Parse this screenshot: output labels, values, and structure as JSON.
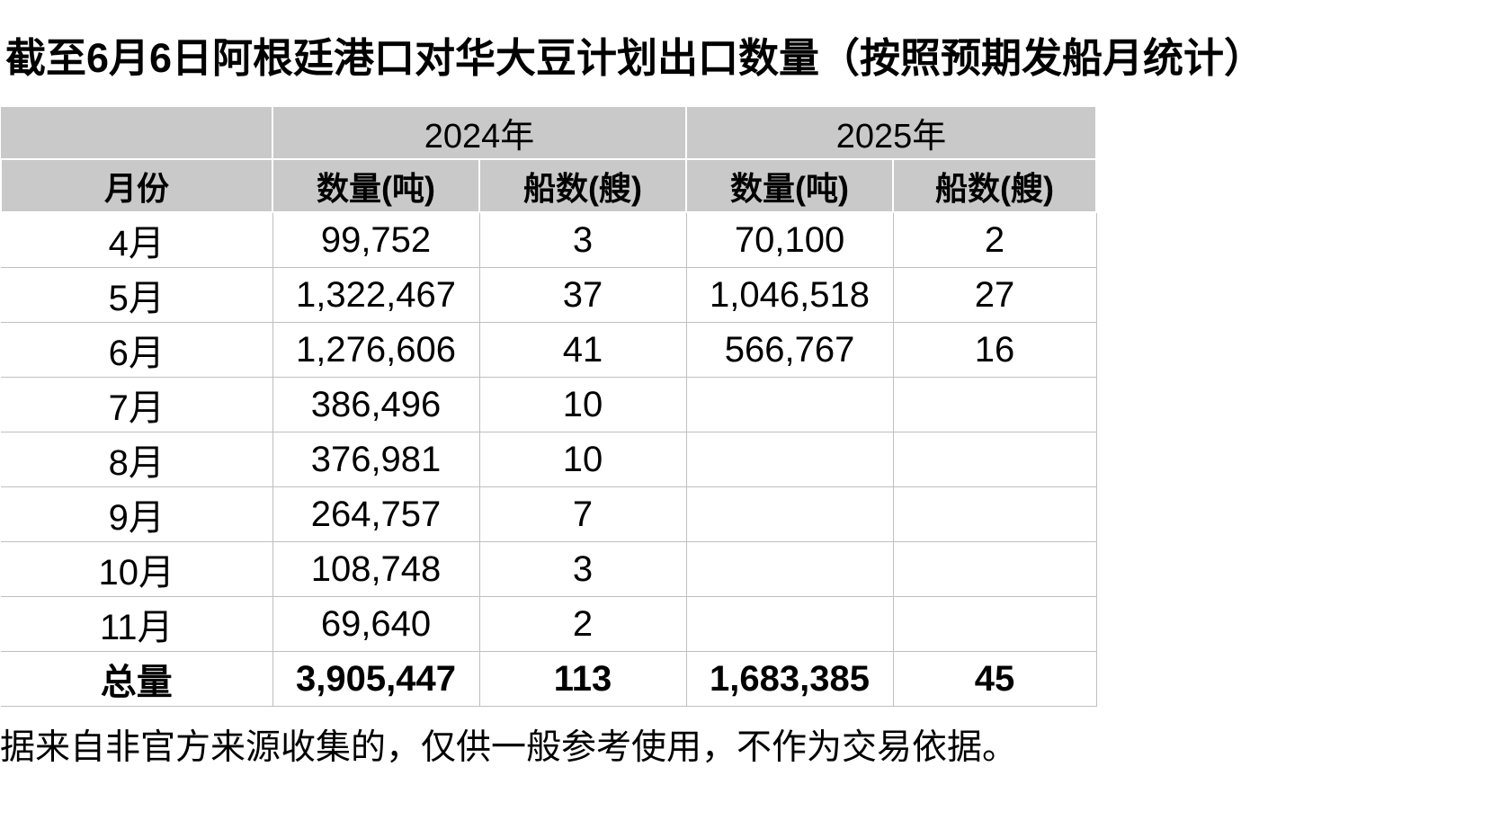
{
  "title": "截至6月6日阿根廷港口对华大豆计划出口数量（按照预期发船月统计）",
  "footer_note": "据来自非官方来源收集的，仅供一般参考使用，不作为交易依据。",
  "colors": {
    "header_bg": "#c9c9c9",
    "grid_line": "#bfbfbf",
    "text": "#000000",
    "background": "#ffffff"
  },
  "table": {
    "year_headers": {
      "y2024": "2024年",
      "y2025": "2025年"
    },
    "columns": {
      "month": "月份",
      "qty_2024": "数量(吨)",
      "ships_2024": "船数(艘)",
      "qty_2025": "数量(吨)",
      "ships_2025": "船数(艘)"
    },
    "rows": [
      {
        "month": "4月",
        "qty_2024": "99,752",
        "ships_2024": "3",
        "qty_2025": "70,100",
        "ships_2025": "2"
      },
      {
        "month": "5月",
        "qty_2024": "1,322,467",
        "ships_2024": "37",
        "qty_2025": "1,046,518",
        "ships_2025": "27"
      },
      {
        "month": "6月",
        "qty_2024": "1,276,606",
        "ships_2024": "41",
        "qty_2025": "566,767",
        "ships_2025": "16"
      },
      {
        "month": "7月",
        "qty_2024": "386,496",
        "ships_2024": "10",
        "qty_2025": "",
        "ships_2025": ""
      },
      {
        "month": "8月",
        "qty_2024": "376,981",
        "ships_2024": "10",
        "qty_2025": "",
        "ships_2025": ""
      },
      {
        "month": "9月",
        "qty_2024": "264,757",
        "ships_2024": "7",
        "qty_2025": "",
        "ships_2025": ""
      },
      {
        "month": "10月",
        "qty_2024": "108,748",
        "ships_2024": "3",
        "qty_2025": "",
        "ships_2025": ""
      },
      {
        "month": "11月",
        "qty_2024": "69,640",
        "ships_2024": "2",
        "qty_2025": "",
        "ships_2025": ""
      }
    ],
    "total": {
      "month": "总量",
      "qty_2024": "3,905,447",
      "ships_2024": "113",
      "qty_2025": "1,683,385",
      "ships_2025": "45"
    }
  },
  "chart_data": {
    "type": "table",
    "title": "截至6月6日阿根廷港口对华大豆计划出口数量（按照预期发船月统计）",
    "categories": [
      "4月",
      "5月",
      "6月",
      "7月",
      "8月",
      "9月",
      "10月",
      "11月"
    ],
    "series": [
      {
        "name": "2024年 数量(吨)",
        "values": [
          99752,
          1322467,
          1276606,
          386496,
          376981,
          264757,
          108748,
          69640
        ]
      },
      {
        "name": "2024年 船数(艘)",
        "values": [
          3,
          37,
          41,
          10,
          10,
          7,
          3,
          2
        ]
      },
      {
        "name": "2025年 数量(吨)",
        "values": [
          70100,
          1046518,
          566767,
          null,
          null,
          null,
          null,
          null
        ]
      },
      {
        "name": "2025年 船数(艘)",
        "values": [
          2,
          27,
          16,
          null,
          null,
          null,
          null,
          null
        ]
      }
    ],
    "totals": {
      "2024年 数量(吨)": 3905447,
      "2024年 船数(艘)": 113,
      "2025年 数量(吨)": 1683385,
      "2025年 船数(艘)": 45
    },
    "note": "据来自非官方来源收集的，仅供一般参考使用，不作为交易依据。"
  }
}
